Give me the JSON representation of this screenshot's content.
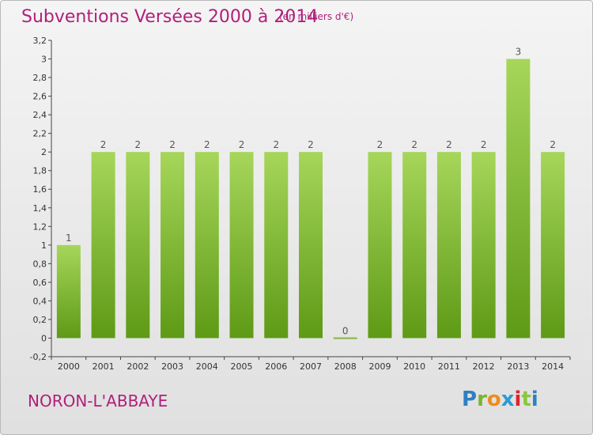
{
  "header": {
    "title": "Subventions Versées 2000 à 2014",
    "subtitle": "(en milliers d'€)"
  },
  "footer": {
    "commune": "NORON-L'ABBAYE",
    "logo_text": "Proxiti"
  },
  "colors": {
    "title": "#b0207a",
    "bar_top": "#a6d65a",
    "bar_bottom": "#5e9a16"
  },
  "chart_data": {
    "type": "bar",
    "title": "Subventions Versées 2000 à 2014",
    "subtitle": "(en milliers d'€)",
    "xlabel": "",
    "ylabel": "",
    "categories": [
      "2000",
      "2001",
      "2002",
      "2003",
      "2004",
      "2005",
      "2006",
      "2007",
      "2008",
      "2009",
      "2010",
      "2011",
      "2012",
      "2013",
      "2014"
    ],
    "values": [
      1,
      2,
      2,
      2,
      2,
      2,
      2,
      2,
      0,
      2,
      2,
      2,
      2,
      3,
      2
    ],
    "data_labels": [
      "1",
      "2",
      "2",
      "2",
      "2",
      "2",
      "2",
      "2",
      "0",
      "2",
      "2",
      "2",
      "2",
      "3",
      "2"
    ],
    "ylim": [
      -0.2,
      3.2
    ],
    "yticks": [
      "-0,2",
      "0",
      "0,2",
      "0,4",
      "0,6",
      "0,8",
      "1",
      "1,2",
      "1,4",
      "1,6",
      "1,8",
      "2",
      "2,2",
      "2,4",
      "2,6",
      "2,8",
      "3",
      "3,2"
    ],
    "ytick_values": [
      -0.2,
      0,
      0.2,
      0.4,
      0.6,
      0.8,
      1,
      1.2,
      1.4,
      1.6,
      1.8,
      2,
      2.2,
      2.4,
      2.6,
      2.8,
      3,
      3.2
    ],
    "grid": false,
    "legend": "none"
  }
}
